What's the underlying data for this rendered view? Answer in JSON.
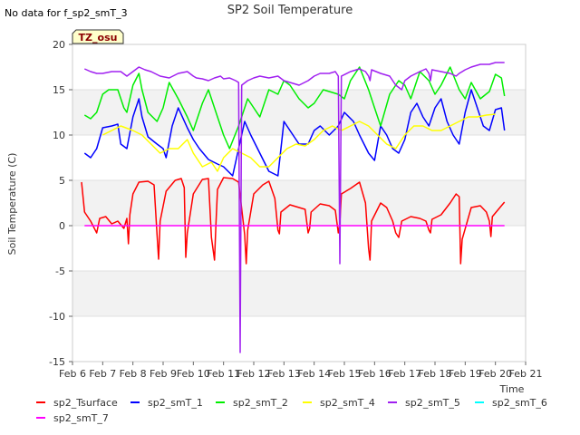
{
  "page": {
    "no_data_note": "No data for f_sp2_smT_3",
    "site_badge": "TZ_osu"
  },
  "chart_data": {
    "type": "line",
    "title": "SP2 Soil Temperature",
    "xlabel": "Time",
    "ylabel": "Soil Temperature (C)",
    "xlim": [
      6,
      21
    ],
    "ylim": [
      -15,
      20
    ],
    "x_ticks": [
      6,
      7,
      8,
      9,
      10,
      11,
      12,
      13,
      14,
      15,
      16,
      17,
      18,
      19,
      20,
      21
    ],
    "x_tick_labels": [
      "Feb 6",
      "Feb 7",
      "Feb 8",
      "Feb 9",
      "Feb 10",
      "Feb 11",
      "Feb 12",
      "Feb 13",
      "Feb 14",
      "Feb 15",
      "Feb 16",
      "Feb 17",
      "Feb 18",
      "Feb 19",
      "Feb 20",
      "Feb 21"
    ],
    "y_ticks": [
      -15,
      -10,
      -5,
      0,
      5,
      10,
      15,
      20
    ],
    "y_tick_labels": [
      "-15",
      "-10",
      "-5",
      "0",
      "5",
      "10",
      "15",
      "20"
    ],
    "grid": "horizontal banded",
    "legend_position": "bottom",
    "series": [
      {
        "name": "sp2_Tsurface",
        "color": "#ff0000",
        "x": [
          6.3,
          6.4,
          6.6,
          6.8,
          6.9,
          7.1,
          7.3,
          7.5,
          7.7,
          7.8,
          7.85,
          7.9,
          8.0,
          8.2,
          8.5,
          8.7,
          8.8,
          8.85,
          8.9,
          9.1,
          9.4,
          9.6,
          9.7,
          9.75,
          9.8,
          10.0,
          10.3,
          10.5,
          10.6,
          10.7,
          10.75,
          10.8,
          11.0,
          11.3,
          11.5,
          11.7,
          11.75,
          11.8,
          12.0,
          12.3,
          12.5,
          12.7,
          12.8,
          12.85,
          12.9,
          13.2,
          13.5,
          13.7,
          13.8,
          13.85,
          13.9,
          14.2,
          14.5,
          14.7,
          14.8,
          14.85,
          14.9,
          15.2,
          15.5,
          15.7,
          15.8,
          15.85,
          15.9,
          16.2,
          16.4,
          16.6,
          16.7,
          16.8,
          16.9,
          17.2,
          17.5,
          17.7,
          17.8,
          17.85,
          17.9,
          18.2,
          18.5,
          18.7,
          18.8,
          18.85,
          18.9,
          19.2,
          19.5,
          19.7,
          19.8,
          19.85,
          19.9,
          20.2,
          20.3
        ],
        "y": [
          4.8,
          1.5,
          0.5,
          -0.8,
          0.8,
          1.0,
          0.2,
          0.5,
          -0.3,
          0.8,
          -2.0,
          1.2,
          3.5,
          4.8,
          4.9,
          4.5,
          -1.0,
          -3.7,
          0.5,
          3.8,
          5.0,
          5.2,
          4.2,
          -3.5,
          -0.8,
          3.5,
          5.1,
          5.2,
          -1.3,
          -3.8,
          0.2,
          4.0,
          5.3,
          5.2,
          4.8,
          -1.0,
          -4.2,
          -0.5,
          3.5,
          4.5,
          4.9,
          3.0,
          -0.5,
          -0.9,
          1.5,
          2.3,
          2.0,
          1.8,
          -0.8,
          -0.3,
          1.5,
          2.4,
          2.2,
          1.7,
          -0.8,
          0.2,
          3.5,
          4.1,
          4.8,
          2.5,
          -2.5,
          -3.8,
          0.5,
          2.5,
          2.0,
          0.5,
          -0.8,
          -1.3,
          0.5,
          1.0,
          0.8,
          0.5,
          -0.5,
          -0.8,
          0.7,
          1.2,
          2.5,
          3.5,
          3.2,
          -4.2,
          -1.5,
          2.0,
          2.2,
          1.5,
          0.5,
          -1.2,
          1.0,
          2.2,
          2.6
        ]
      },
      {
        "name": "sp2_smT_1",
        "color": "#0000ff",
        "x": [
          6.4,
          6.6,
          6.8,
          7.0,
          7.3,
          7.5,
          7.6,
          7.8,
          8.0,
          8.2,
          8.3,
          8.5,
          8.8,
          9.0,
          9.1,
          9.3,
          9.5,
          9.8,
          10.0,
          10.2,
          10.5,
          10.8,
          11.0,
          11.3,
          11.5,
          11.7,
          11.9,
          12.2,
          12.5,
          12.8,
          13.0,
          13.3,
          13.5,
          13.8,
          14.0,
          14.2,
          14.5,
          14.8,
          15.0,
          15.3,
          15.5,
          15.8,
          16.0,
          16.2,
          16.4,
          16.6,
          16.8,
          17.0,
          17.2,
          17.4,
          17.6,
          17.8,
          18.0,
          18.2,
          18.4,
          18.6,
          18.8,
          19.0,
          19.2,
          19.4,
          19.6,
          19.8,
          20.0,
          20.2,
          20.3
        ],
        "y": [
          8.0,
          7.5,
          8.5,
          10.8,
          11.0,
          11.2,
          9.0,
          8.5,
          12.0,
          14.0,
          12.0,
          9.8,
          9.0,
          8.5,
          7.5,
          11.0,
          13.0,
          10.8,
          9.5,
          8.5,
          7.3,
          6.8,
          6.5,
          5.5,
          8.5,
          11.5,
          10.0,
          8.0,
          6.0,
          5.5,
          11.5,
          10.0,
          9.0,
          9.0,
          10.5,
          11.0,
          10.0,
          11.0,
          12.5,
          11.5,
          10.0,
          8.0,
          7.2,
          11.0,
          10.0,
          8.5,
          8.0,
          9.5,
          12.5,
          13.5,
          12.0,
          11.0,
          13.0,
          14.0,
          11.5,
          10.0,
          9.0,
          12.5,
          15.0,
          13.0,
          11.0,
          10.5,
          12.8,
          13.0,
          10.5
        ]
      },
      {
        "name": "sp2_smT_2",
        "color": "#00ee00",
        "x": [
          6.4,
          6.6,
          6.8,
          7.0,
          7.2,
          7.5,
          7.7,
          7.8,
          8.0,
          8.2,
          8.3,
          8.5,
          8.8,
          9.0,
          9.2,
          9.5,
          9.8,
          10.0,
          10.3,
          10.5,
          10.8,
          11.0,
          11.2,
          11.5,
          11.8,
          12.0,
          12.2,
          12.5,
          12.8,
          13.0,
          13.2,
          13.5,
          13.8,
          14.0,
          14.3,
          14.5,
          14.8,
          15.0,
          15.2,
          15.5,
          15.8,
          16.0,
          16.2,
          16.5,
          16.8,
          17.0,
          17.2,
          17.5,
          17.8,
          18.0,
          18.2,
          18.5,
          18.8,
          19.0,
          19.2,
          19.5,
          19.8,
          20.0,
          20.2,
          20.3
        ],
        "y": [
          12.2,
          11.8,
          12.5,
          14.5,
          15.0,
          15.0,
          13.0,
          12.5,
          15.5,
          16.8,
          15.0,
          12.5,
          11.5,
          13.0,
          15.8,
          14.0,
          12.0,
          10.5,
          13.5,
          15.0,
          12.0,
          10.0,
          8.5,
          11.0,
          14.0,
          13.0,
          12.0,
          15.0,
          14.5,
          16.0,
          15.5,
          14.0,
          13.0,
          13.5,
          15.0,
          14.8,
          14.5,
          14.0,
          16.0,
          17.5,
          15.0,
          13.0,
          11.0,
          14.5,
          16.0,
          15.5,
          14.0,
          17.0,
          16.0,
          14.5,
          15.5,
          17.5,
          15.0,
          14.0,
          15.8,
          14.0,
          14.8,
          16.7,
          16.3,
          14.3
        ]
      },
      {
        "name": "sp2_smT_4",
        "color": "#ffff00",
        "x": [
          7.0,
          7.3,
          7.6,
          8.0,
          8.3,
          8.6,
          8.9,
          9.2,
          9.5,
          9.8,
          10.0,
          10.3,
          10.6,
          10.8,
          11.0,
          11.3,
          11.6,
          11.9,
          12.2,
          12.5,
          12.8,
          13.1,
          13.4,
          13.7,
          14.0,
          14.3,
          14.6,
          14.9,
          15.2,
          15.5,
          15.8,
          16.1,
          16.4,
          16.7,
          17.0,
          17.3,
          17.6,
          17.9,
          18.2,
          18.5,
          18.8,
          19.1,
          19.4,
          19.7,
          20.0
        ],
        "y": [
          10.0,
          10.5,
          11.0,
          10.5,
          10.0,
          9.0,
          8.0,
          8.5,
          8.5,
          9.5,
          8.0,
          6.5,
          7.0,
          6.0,
          7.5,
          8.5,
          8.0,
          7.5,
          6.5,
          6.5,
          7.5,
          8.5,
          9.0,
          8.8,
          9.5,
          10.5,
          11.0,
          10.5,
          11.0,
          11.5,
          11.0,
          10.0,
          9.0,
          8.5,
          10.0,
          11.0,
          11.0,
          10.5,
          10.5,
          11.0,
          11.5,
          12.0,
          12.0,
          12.2,
          12.3
        ]
      },
      {
        "name": "sp2_smT_5",
        "color": "#a020f0",
        "x": [
          6.4,
          6.6,
          6.8,
          7.0,
          7.3,
          7.6,
          7.8,
          8.0,
          8.2,
          8.4,
          8.6,
          8.9,
          9.2,
          9.5,
          9.8,
          10.0,
          10.1,
          10.3,
          10.5,
          10.7,
          10.9,
          11.0,
          11.2,
          11.4,
          11.5,
          11.55,
          11.6,
          11.8,
          12.0,
          12.2,
          12.5,
          12.8,
          13.0,
          13.2,
          13.5,
          13.8,
          14.0,
          14.2,
          14.5,
          14.7,
          14.8,
          14.85,
          14.9,
          15.2,
          15.5,
          15.7,
          15.8,
          15.85,
          15.9,
          16.2,
          16.5,
          16.7,
          16.9,
          17.0,
          17.2,
          17.5,
          17.7,
          17.8,
          17.85,
          17.9,
          18.2,
          18.5,
          18.7,
          18.8,
          19.0,
          19.2,
          19.5,
          19.8,
          20.0,
          20.2,
          20.3
        ],
        "y": [
          17.3,
          17.0,
          16.8,
          16.8,
          17.0,
          17.0,
          16.5,
          17.0,
          17.5,
          17.2,
          17.0,
          16.5,
          16.3,
          16.8,
          17.0,
          16.5,
          16.3,
          16.2,
          16.0,
          16.3,
          16.5,
          16.2,
          16.3,
          16.0,
          15.8,
          -14.0,
          15.5,
          16.0,
          16.3,
          16.5,
          16.3,
          16.5,
          16.0,
          15.8,
          15.5,
          16.0,
          16.5,
          16.8,
          16.8,
          17.0,
          16.5,
          -4.2,
          16.5,
          17.0,
          17.3,
          17.0,
          16.5,
          16.0,
          17.2,
          16.8,
          16.5,
          15.5,
          15.0,
          16.0,
          16.5,
          17.0,
          17.3,
          16.8,
          16.0,
          17.2,
          17.0,
          16.8,
          16.5,
          16.8,
          17.2,
          17.5,
          17.8,
          17.8,
          18.0,
          18.0,
          18.0
        ]
      },
      {
        "name": "sp2_smT_6",
        "color": "#00ffff",
        "x": [],
        "y": []
      },
      {
        "name": "sp2_smT_7",
        "color": "#ff00ff",
        "x": [
          6.4,
          20.3
        ],
        "y": [
          0.0,
          0.0
        ]
      }
    ]
  }
}
